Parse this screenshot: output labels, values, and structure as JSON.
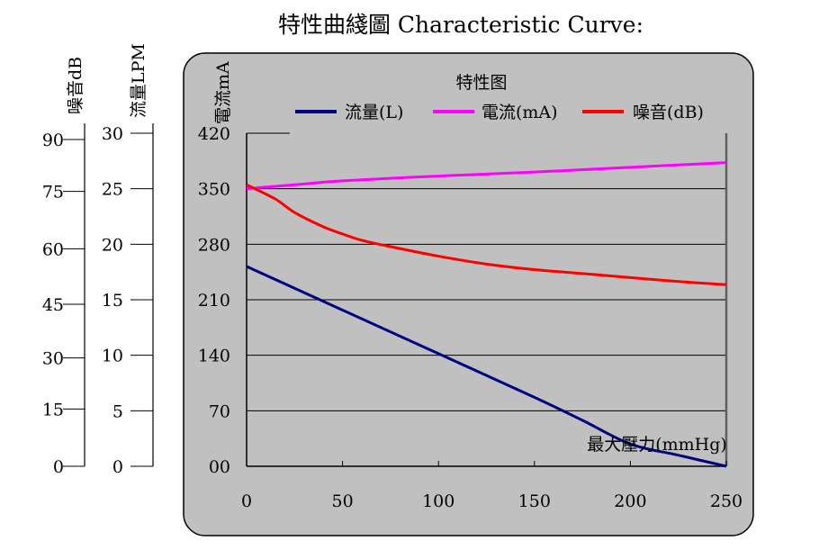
{
  "chart_data": {
    "type": "line",
    "title": "特性曲綫圖 Characteristic Curve:",
    "plot_title": "特性图",
    "xlabel": "最大壓力(mmHg)",
    "ylabel": "電流mA",
    "xlim": [
      0,
      250
    ],
    "ylim": [
      0,
      420
    ],
    "grid": true,
    "legend_placement": "top",
    "x_ticks": [
      "0",
      "50",
      "100",
      "150",
      "200",
      "250"
    ],
    "y_ticks": [
      "00",
      "70",
      "140",
      "210",
      "280",
      "350",
      "420"
    ],
    "secondary_axes": [
      {
        "label": "噪音dB",
        "ticks": [
          "0",
          "15",
          "30",
          "45",
          "60",
          "75",
          "90"
        ],
        "range": [
          0,
          90
        ]
      },
      {
        "label": "流量LPM",
        "ticks": [
          "0",
          "5",
          "10",
          "15",
          "20",
          "25",
          "30"
        ],
        "range": [
          0,
          30
        ]
      }
    ],
    "series": [
      {
        "name": "流量(L)",
        "color": "#000080",
        "axis": "流量LPM",
        "x": [
          0,
          50,
          100,
          150,
          175,
          200,
          225,
          250
        ],
        "y": [
          252,
          197,
          142,
          87,
          58,
          28,
          14,
          0
        ]
      },
      {
        "name": "電流(mA)",
        "color": "#ff00ff",
        "axis": "電流mA",
        "x": [
          0,
          25,
          50,
          100,
          150,
          200,
          250
        ],
        "y": [
          350,
          355,
          360,
          366,
          371,
          377,
          383
        ]
      },
      {
        "name": "噪音(dB)",
        "color": "#ff0000",
        "axis": "噪音dB",
        "x": [
          0,
          15,
          25,
          40,
          50,
          60,
          75,
          100,
          125,
          150,
          175,
          200,
          225,
          250
        ],
        "y": [
          355,
          337,
          320,
          302,
          293,
          285,
          277,
          265,
          255,
          248,
          243,
          238,
          233,
          229
        ]
      }
    ]
  }
}
